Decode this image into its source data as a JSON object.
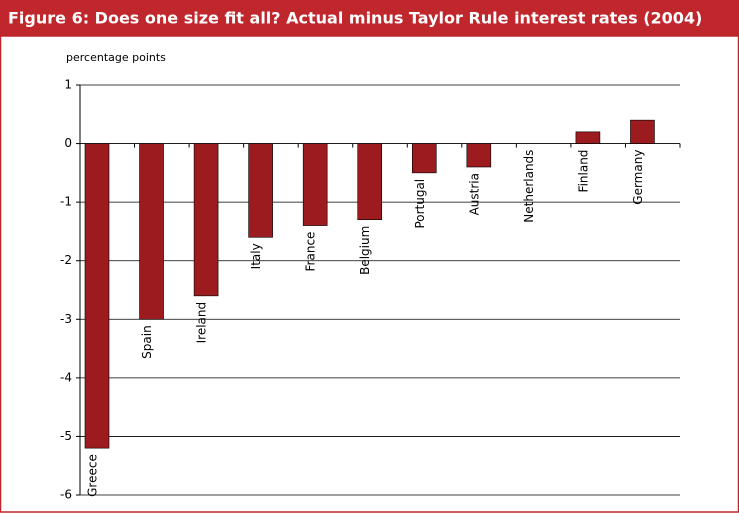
{
  "chart_data": {
    "type": "bar",
    "title": "Figure 6: Does one size fit all? Actual minus Taylor Rule interest rates (2004)",
    "ylabel": "percentage points",
    "categories": [
      "Greece",
      "Spain",
      "Ireland",
      "Italy",
      "France",
      "Belgium",
      "Portugal",
      "Austria",
      "Netherlands",
      "Finland",
      "Germany"
    ],
    "values": [
      -5.2,
      -3.0,
      -2.6,
      -1.6,
      -1.4,
      -1.3,
      -0.5,
      -0.4,
      0,
      0.2,
      0.4
    ],
    "color": "#9b1b1f",
    "ylim": [
      -6,
      1
    ],
    "yticks": [
      -6,
      -5,
      -4,
      -3,
      -2,
      -1,
      0,
      1
    ],
    "grid": true
  }
}
